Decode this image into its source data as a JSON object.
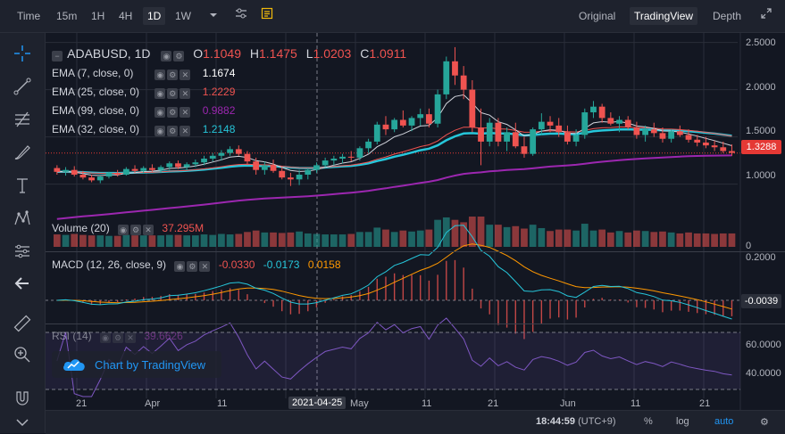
{
  "topbar": {
    "intervals": [
      "Time",
      "15m",
      "1H",
      "4H",
      "1D",
      "1W"
    ],
    "active_interval": "1D",
    "views": [
      "Original",
      "TradingView",
      "Depth"
    ],
    "active_view": "TradingView"
  },
  "chart": {
    "symbol": "ADABUSD, 1D",
    "ohlc": {
      "o_label": "O",
      "o": "1.1049",
      "h_label": "H",
      "h": "1.1475",
      "l_label": "L",
      "l": "1.0203",
      "c_label": "C",
      "c": "1.0911"
    },
    "indicators": [
      {
        "label": "EMA (7, close, 0)",
        "value": "1.1674",
        "color": "#ffffff"
      },
      {
        "label": "EMA (25, close, 0)",
        "value": "1.2229",
        "color": "#ef5350"
      },
      {
        "label": "EMA (99, close, 0)",
        "value": "0.9882",
        "color": "#9c27b0"
      },
      {
        "label": "EMA (32, close, 0)",
        "value": "1.2148",
        "color": "#26c6da"
      }
    ],
    "volume": {
      "label": "Volume (20)",
      "value": "37.295M"
    },
    "macd": {
      "label": "MACD (12, 26, close, 9)",
      "v1": "-0.0330",
      "v2": "-0.0173",
      "v3": "0.0158"
    },
    "rsi": {
      "label": "RSI (14)",
      "value": "39.6626"
    },
    "watermark": "Chart by TradingView",
    "price_axis": [
      "2.5000",
      "2.0000",
      "1.5000",
      "1.0000"
    ],
    "last_price": "1.3288",
    "volume_axis": [
      "0"
    ],
    "macd_axis": [
      "0.2000",
      "0.0000"
    ],
    "macd_last": "-0.0039",
    "rsi_axis": [
      "60.0000",
      "40.0000"
    ],
    "x_axis": [
      "21",
      "Apr",
      "11",
      "2021-04-25",
      "May",
      "11",
      "21",
      "Jun",
      "11",
      "21"
    ],
    "crosshair_date": "2021-04-25"
  },
  "chart_data": {
    "type": "candlestick",
    "candles": [
      [
        1.17,
        1.2,
        1.1,
        1.13
      ],
      [
        1.13,
        1.18,
        1.09,
        1.15
      ],
      [
        1.15,
        1.19,
        1.08,
        1.1
      ],
      [
        1.1,
        1.14,
        1.05,
        1.07
      ],
      [
        1.07,
        1.1,
        1.02,
        1.04
      ],
      [
        1.04,
        1.09,
        1.01,
        1.08
      ],
      [
        1.08,
        1.13,
        1.06,
        1.12
      ],
      [
        1.12,
        1.15,
        1.08,
        1.1
      ],
      [
        1.1,
        1.18,
        1.09,
        1.16
      ],
      [
        1.16,
        1.2,
        1.12,
        1.14
      ],
      [
        1.14,
        1.19,
        1.11,
        1.17
      ],
      [
        1.17,
        1.21,
        1.13,
        1.15
      ],
      [
        1.15,
        1.2,
        1.12,
        1.18
      ],
      [
        1.18,
        1.24,
        1.15,
        1.22
      ],
      [
        1.22,
        1.25,
        1.16,
        1.18
      ],
      [
        1.18,
        1.23,
        1.15,
        1.21
      ],
      [
        1.21,
        1.26,
        1.18,
        1.23
      ],
      [
        1.23,
        1.3,
        1.2,
        1.27
      ],
      [
        1.27,
        1.33,
        1.24,
        1.3
      ],
      [
        1.3,
        1.36,
        1.25,
        1.33
      ],
      [
        1.33,
        1.4,
        1.3,
        1.37
      ],
      [
        1.37,
        1.41,
        1.3,
        1.32
      ],
      [
        1.32,
        1.35,
        1.2,
        1.24
      ],
      [
        1.24,
        1.28,
        1.1,
        1.15
      ],
      [
        1.15,
        1.24,
        1.1,
        1.2
      ],
      [
        1.2,
        1.26,
        1.12,
        1.14
      ],
      [
        1.14,
        1.18,
        1.05,
        1.07
      ],
      [
        1.07,
        1.12,
        0.98,
        1.05
      ],
      [
        1.05,
        1.15,
        0.99,
        1.1
      ],
      [
        1.1,
        1.17,
        1.05,
        1.15
      ],
      [
        1.15,
        1.23,
        1.12,
        1.2
      ],
      [
        1.2,
        1.28,
        1.18,
        1.25
      ],
      [
        1.25,
        1.3,
        1.2,
        1.27
      ],
      [
        1.27,
        1.32,
        1.22,
        1.29
      ],
      [
        1.29,
        1.35,
        1.24,
        1.28
      ],
      [
        1.28,
        1.4,
        1.25,
        1.38
      ],
      [
        1.38,
        1.48,
        1.33,
        1.45
      ],
      [
        1.45,
        1.66,
        1.42,
        1.63
      ],
      [
        1.63,
        1.72,
        1.52,
        1.58
      ],
      [
        1.58,
        1.7,
        1.55,
        1.68
      ],
      [
        1.68,
        1.78,
        1.6,
        1.62
      ],
      [
        1.62,
        1.72,
        1.56,
        1.7
      ],
      [
        1.7,
        1.8,
        1.62,
        1.74
      ],
      [
        1.74,
        1.8,
        1.6,
        1.64
      ],
      [
        1.64,
        2.0,
        1.6,
        1.95
      ],
      [
        1.95,
        2.35,
        1.9,
        2.3
      ],
      [
        2.3,
        2.45,
        2.05,
        2.15
      ],
      [
        2.15,
        2.25,
        1.9,
        2.0
      ],
      [
        2.0,
        2.1,
        1.55,
        1.6
      ],
      [
        1.6,
        1.8,
        1.2,
        1.45
      ],
      [
        1.45,
        1.7,
        1.4,
        1.65
      ],
      [
        1.65,
        1.7,
        1.4,
        1.45
      ],
      [
        1.45,
        1.6,
        1.35,
        1.55
      ],
      [
        1.55,
        1.65,
        1.38,
        1.4
      ],
      [
        1.4,
        1.5,
        1.28,
        1.32
      ],
      [
        1.32,
        1.6,
        1.3,
        1.58
      ],
      [
        1.58,
        1.75,
        1.52,
        1.66
      ],
      [
        1.66,
        1.72,
        1.55,
        1.62
      ],
      [
        1.62,
        1.7,
        1.5,
        1.55
      ],
      [
        1.55,
        1.62,
        1.42,
        1.45
      ],
      [
        1.45,
        1.58,
        1.4,
        1.52
      ],
      [
        1.52,
        1.8,
        1.48,
        1.76
      ],
      [
        1.76,
        1.88,
        1.7,
        1.82
      ],
      [
        1.82,
        1.85,
        1.65,
        1.7
      ],
      [
        1.7,
        1.76,
        1.62,
        1.64
      ],
      [
        1.64,
        1.72,
        1.55,
        1.68
      ],
      [
        1.68,
        1.72,
        1.58,
        1.6
      ],
      [
        1.6,
        1.66,
        1.48,
        1.52
      ],
      [
        1.52,
        1.62,
        1.45,
        1.58
      ],
      [
        1.58,
        1.65,
        1.5,
        1.54
      ],
      [
        1.54,
        1.6,
        1.44,
        1.48
      ],
      [
        1.48,
        1.58,
        1.44,
        1.56
      ],
      [
        1.56,
        1.62,
        1.5,
        1.52
      ],
      [
        1.52,
        1.58,
        1.44,
        1.47
      ],
      [
        1.47,
        1.52,
        1.4,
        1.44
      ],
      [
        1.44,
        1.5,
        1.38,
        1.41
      ],
      [
        1.41,
        1.46,
        1.35,
        1.39
      ],
      [
        1.39,
        1.45,
        1.33,
        1.35
      ],
      [
        1.35,
        1.42,
        1.3,
        1.33
      ]
    ],
    "y_range": [
      0.6,
      2.6
    ]
  }
}
